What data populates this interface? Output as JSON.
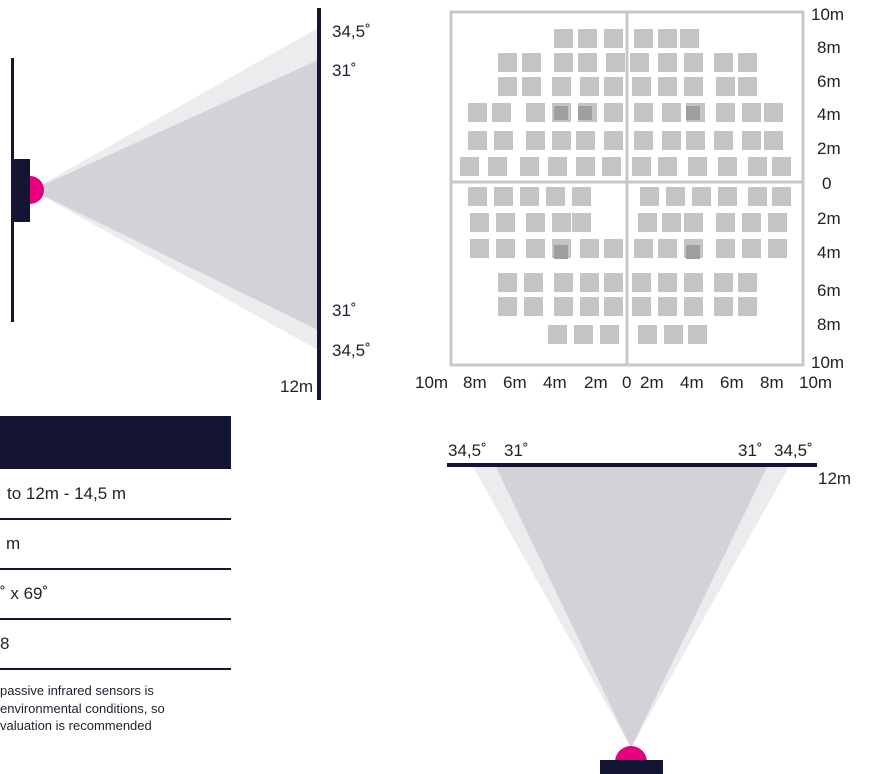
{
  "side_view": {
    "angle_outer_top": "34,5˚",
    "angle_inner_top": "31˚",
    "angle_inner_bottom": "31˚",
    "angle_outer_bottom": "34,5˚",
    "range_label": "12m",
    "colors": {
      "sensor": "#e6007e",
      "body": "#141533",
      "beam_inner": "#d2d2d8",
      "beam_outer": "#ececef"
    }
  },
  "detection_grid": {
    "right_labels": [
      "10m",
      "8m",
      "6m",
      "4m",
      "2m",
      "0",
      "2m",
      "4m",
      "6m",
      "8m",
      "10m"
    ],
    "bottom_labels": [
      "10m",
      "8m",
      "6m",
      "4m",
      "2m",
      "0",
      "2m",
      "4m",
      "6m",
      "8m",
      "10m"
    ],
    "highlighted_right_label_index": 2,
    "colors": {
      "frame": "#c8c8c8",
      "zone": "#c4c4c4",
      "zone_dark": "#9e9e9e"
    }
  },
  "specs_table": {
    "rows": [
      "to 12m - 14,5 m",
      "m",
      "˚ x 69˚",
      "8"
    ],
    "note_lines": [
      "passive infrared sensors is",
      "environmental conditions, so",
      "valuation is recommended"
    ]
  },
  "top_view": {
    "angle_outer_left": "34,5˚",
    "angle_inner_left": "31˚",
    "angle_inner_right": "31˚",
    "angle_outer_right": "34,5˚",
    "range_label": "12m"
  }
}
